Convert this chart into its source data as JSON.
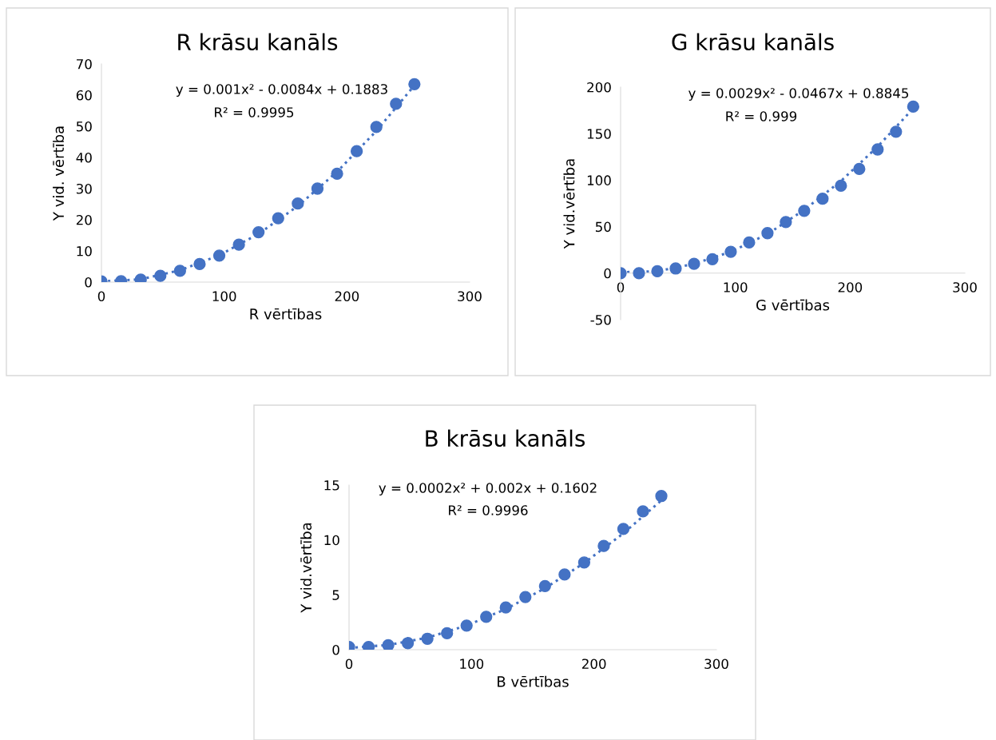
{
  "chart_data": [
    {
      "type": "scatter",
      "title": "R krāsu kanāls",
      "xlabel": "R vērtības",
      "ylabel": "Y vid. vērtība",
      "xlim": [
        0,
        300
      ],
      "xticks": [
        0,
        100,
        200,
        300
      ],
      "ylim": [
        0,
        70
      ],
      "yticks": [
        0,
        10,
        20,
        30,
        40,
        50,
        60,
        70
      ],
      "grid": false,
      "marker": "circle",
      "series": [
        {
          "color": "#4472c4",
          "x": [
            0,
            16,
            32,
            48,
            64,
            80,
            96,
            112,
            128,
            144,
            160,
            176,
            192,
            208,
            224,
            240,
            255
          ],
          "values": [
            0.2,
            0.3,
            0.8,
            2,
            3.6,
            5.8,
            8.5,
            12,
            16,
            20.5,
            25.2,
            30,
            34.8,
            42,
            49.8,
            57.2,
            63.5
          ]
        },
        {
          "type": "line",
          "line_style": "dotted",
          "marker": "none",
          "color": "#4472c4",
          "x": [
            0,
            32,
            64,
            96,
            128,
            160,
            192,
            224,
            255
          ],
          "values": [
            0.2,
            0.9,
            3.8,
            8.6,
            15.5,
            24.4,
            35.4,
            48.5,
            63.1
          ]
        }
      ],
      "annotations": [
        "y = 0.001x² - 0.0084x + 0.1883",
        "R² = 0.9995"
      ]
    },
    {
      "type": "scatter",
      "title": "G krāsu kanāls",
      "xlabel": "G vērtības",
      "ylabel": "Y vid.vērtība",
      "xlim": [
        0,
        300
      ],
      "xticks": [
        0,
        100,
        200,
        300
      ],
      "ylim": [
        -50,
        200
      ],
      "yticks": [
        -50,
        0,
        50,
        100,
        150,
        200
      ],
      "grid": false,
      "marker": "circle",
      "series": [
        {
          "color": "#4472c4",
          "x": [
            0,
            16,
            32,
            48,
            64,
            80,
            96,
            112,
            128,
            144,
            160,
            176,
            192,
            208,
            224,
            240,
            255
          ],
          "values": [
            0,
            0,
            2,
            5,
            10,
            15,
            23,
            33,
            43,
            55,
            67,
            80,
            94,
            112,
            133,
            152,
            179
          ]
        },
        {
          "type": "line",
          "line_style": "dotted",
          "marker": "none",
          "color": "#4472c4",
          "x": [
            0,
            32,
            64,
            96,
            128,
            160,
            192,
            224,
            255
          ],
          "values": [
            1,
            2,
            10,
            23,
            42,
            68,
            99,
            136,
            177
          ]
        }
      ],
      "annotations": [
        "y = 0.0029x² - 0.0467x + 0.8845",
        "R² = 0.999"
      ]
    },
    {
      "type": "scatter",
      "title": "B krāsu kanāls",
      "xlabel": "B vērtības",
      "ylabel": "Y vid.vērtība",
      "xlim": [
        0,
        300
      ],
      "xticks": [
        0,
        100,
        200,
        300
      ],
      "ylim": [
        0,
        15
      ],
      "yticks": [
        0,
        5,
        10,
        15
      ],
      "grid": false,
      "marker": "circle",
      "series": [
        {
          "color": "#4472c4",
          "x": [
            0,
            16,
            32,
            48,
            64,
            80,
            96,
            112,
            128,
            144,
            160,
            176,
            192,
            208,
            224,
            240,
            255
          ],
          "values": [
            0.25,
            0.25,
            0.4,
            0.6,
            1.0,
            1.5,
            2.2,
            3.0,
            3.85,
            4.8,
            5.8,
            6.85,
            7.95,
            9.45,
            11.0,
            12.6,
            14.0
          ]
        },
        {
          "type": "line",
          "line_style": "dotted",
          "marker": "none",
          "color": "#4472c4",
          "x": [
            0,
            32,
            64,
            96,
            128,
            160,
            192,
            224,
            255
          ],
          "values": [
            0.16,
            0.43,
            1.1,
            2.2,
            3.7,
            5.6,
            7.9,
            10.6,
            13.6
          ]
        }
      ],
      "annotations": [
        "y = 0.0002x² + 0.002x + 0.1602",
        "R² = 0.9996"
      ]
    }
  ]
}
